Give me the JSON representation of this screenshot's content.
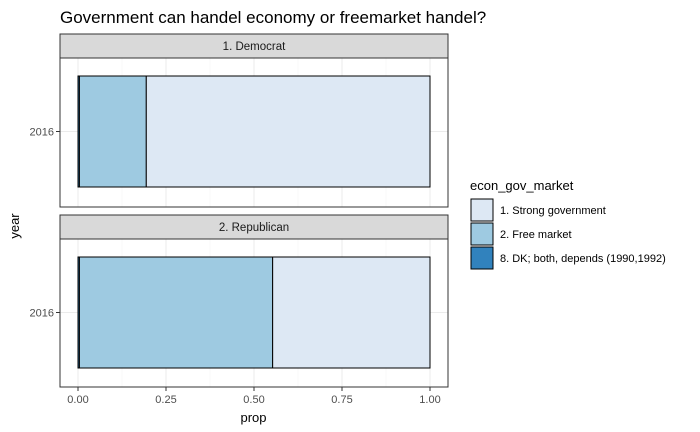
{
  "chart_data": {
    "type": "bar",
    "orientation": "horizontal",
    "stacked": true,
    "title": "Government can handel economy or freemarket handel?",
    "xlabel": "prop",
    "ylabel": "year",
    "xlim": [
      0,
      1
    ],
    "x_ticks": [
      "0.00",
      "0.25",
      "0.50",
      "0.75",
      "1.00"
    ],
    "grid": true,
    "legend_position": "right",
    "legend_title": "econ_gov_market",
    "categories_order": [
      "1. Strong government",
      "2. Free market",
      "8. DK; both, depends (1990,1992)"
    ],
    "colors": {
      "1. Strong government": "#dde8f4",
      "2. Free market": "#9ecae1",
      "8. DK; both, depends (1990,1992)": "#3182bd"
    },
    "panels": [
      {
        "strip": "1. Democrat",
        "y_tick": "2016",
        "segments": [
          {
            "category": "8. DK; both, depends (1990,1992)",
            "value": 0.004
          },
          {
            "category": "2. Free market",
            "value": 0.19
          },
          {
            "category": "1. Strong government",
            "value": 0.806
          }
        ]
      },
      {
        "strip": "2. Republican",
        "y_tick": "2016",
        "segments": [
          {
            "category": "8. DK; both, depends (1990,1992)",
            "value": 0.004
          },
          {
            "category": "2. Free market",
            "value": 0.549
          },
          {
            "category": "1. Strong government",
            "value": 0.447
          }
        ]
      }
    ]
  }
}
